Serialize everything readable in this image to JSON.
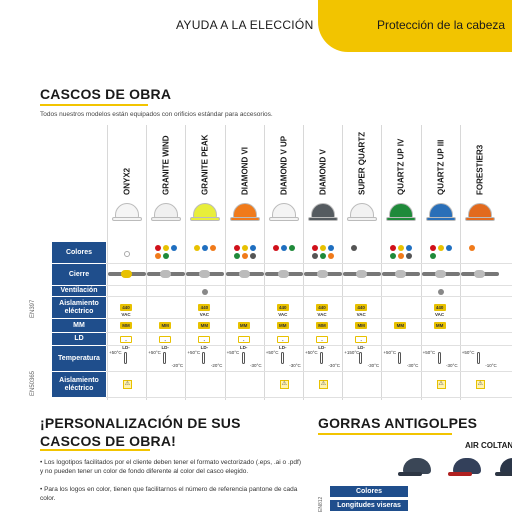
{
  "header": {
    "guide": "AYUDA A LA ELECCIÓN",
    "section": "Protección de la cabeza",
    "band_color": "#f2c400"
  },
  "cascos": {
    "title": "CASCOS DE OBRA",
    "subtitle": "Todos nuestros modelos están equipados con orificios estándar para accesorios.",
    "models": [
      {
        "name": "ONYX2",
        "color": "#f5f5f5"
      },
      {
        "name": "GRANITE WIND",
        "color": "#f0f0f0"
      },
      {
        "name": "GRANITE PEAK",
        "color": "#e8ee3a"
      },
      {
        "name": "DIAMOND VI",
        "color": "#f07a1a"
      },
      {
        "name": "DIAMOND V UP",
        "color": "#f4f4f4"
      },
      {
        "name": "DIAMOND V",
        "color": "#555b60"
      },
      {
        "name": "SUPER QUARTZ",
        "color": "#f2f2f2"
      },
      {
        "name": "QUARTZ UP IV",
        "color": "#1f8a3a"
      },
      {
        "name": "QUARTZ UP III",
        "color": "#2a6fb8"
      },
      {
        "name": "FORESTIER3",
        "color": "#e26a1e"
      }
    ],
    "rows": {
      "colores": "Colores",
      "cierre": "Cierre",
      "ventilacion": "Ventilación",
      "aislamiento": "Aislamiento eléctrico",
      "mm": "MM",
      "ld": "LD",
      "temperatura": "Temperatura",
      "aislamiento2": "Aislamiento eléctrico"
    },
    "side_code_1": "EN397",
    "side_code_2": "EN50365",
    "badges": {
      "mm": "MM",
      "ld": "-LD-",
      "iso": "440 VAC",
      "warn": "⚠"
    },
    "temps": [
      {
        "top": "+50°C",
        "bottom": ""
      },
      {
        "top": "+50°C",
        "bottom": "-20°C"
      },
      {
        "top": "+50°C",
        "bottom": "-20°C"
      },
      {
        "top": "+50°C",
        "bottom": "-30°C"
      },
      {
        "top": "+50°C",
        "bottom": "-30°C"
      },
      {
        "top": "+50°C",
        "bottom": "-30°C"
      },
      {
        "top": "+150°C",
        "bottom": "-30°C"
      },
      {
        "top": "+50°C",
        "bottom": "-30°C"
      },
      {
        "top": "+50°C",
        "bottom": "-30°C"
      },
      {
        "top": "+50°C",
        "bottom": "-10°C"
      }
    ],
    "temp_first_top": "+50°C"
  },
  "personalizacion": {
    "title_line1": "¡PERSONALIZACIÓN DE SUS",
    "title_line2": "CASCOS DE OBRA!",
    "bullet1": "• Los logotipos facilitados por el cliente deben tener el formato vectorizado (.eps, .ai o .pdf) y no pueden tener un color de fondo diferente al color del casco elegido.",
    "bullet2": "• Para los logos en color, tienen que facilitarnos el número de referencia pantone de cada color."
  },
  "gorras": {
    "title": "GORRAS ANTIGOLPES",
    "brand": "AIR COLTAN",
    "row_colores": "Colores",
    "row_viseras": "Longitudes viseras",
    "side_code": "EN812"
  }
}
